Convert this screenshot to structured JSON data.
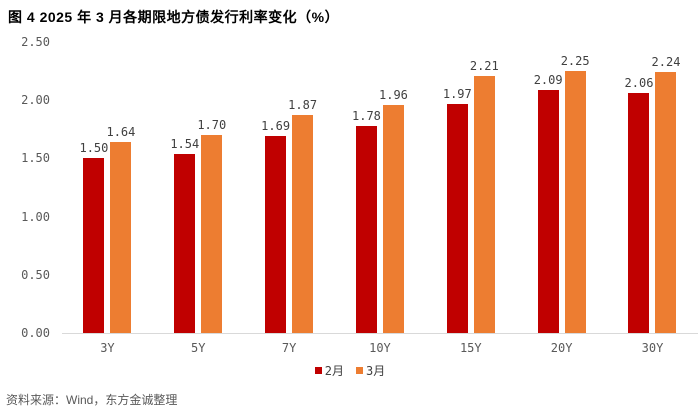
{
  "title": "图 4 2025 年 3 月各期限地方债发行利率变化（%）",
  "source": "资料来源：Wind，东方金诚整理",
  "colors": {
    "series_feb": "#C00000",
    "series_mar": "#ED7D31",
    "axis_line": "#D9D9D9",
    "tick_text": "#595959",
    "data_label_text": "#404040"
  },
  "chart_data": {
    "type": "bar",
    "title": "图 4 2025 年 3 月各期限地方债发行利率变化（%）",
    "categories": [
      "3Y",
      "5Y",
      "7Y",
      "10Y",
      "15Y",
      "20Y",
      "30Y"
    ],
    "series": [
      {
        "name": "2月",
        "color": "#C00000",
        "values": [
          1.5,
          1.54,
          1.69,
          1.78,
          1.97,
          2.09,
          2.06
        ]
      },
      {
        "name": "3月",
        "color": "#ED7D31",
        "values": [
          1.64,
          1.7,
          1.87,
          1.96,
          2.21,
          2.25,
          2.24
        ]
      }
    ],
    "xlabel": "",
    "ylabel": "",
    "ylim": [
      0,
      2.5
    ],
    "yticks": [
      2.5,
      2.0,
      1.5,
      1.0,
      0.5,
      0.0
    ],
    "grid": false,
    "data_labels": true,
    "legend_position": "bottom-center"
  }
}
